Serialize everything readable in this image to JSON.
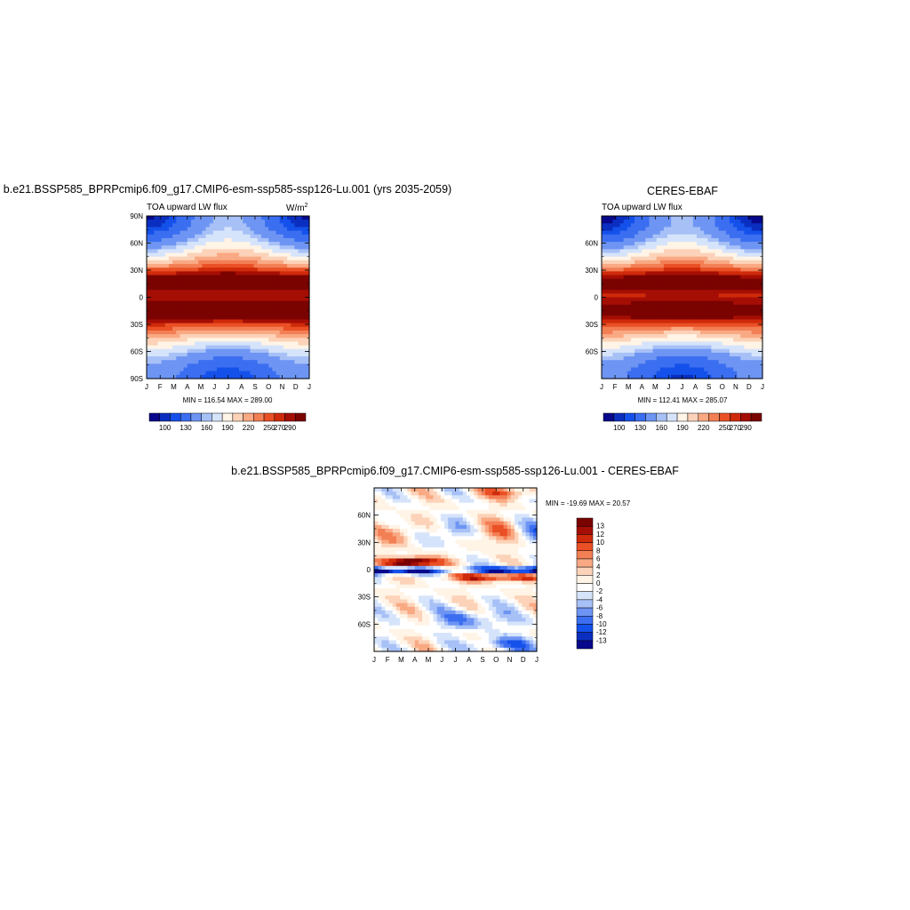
{
  "colors": {
    "lw_palette": [
      "#08088c",
      "#0a2fc0",
      "#1450ea",
      "#3b6ef0",
      "#6e95f3",
      "#a7c1f7",
      "#d6e4fb",
      "#fff4e6",
      "#fcd2b8",
      "#f9a983",
      "#f37f55",
      "#ea5025",
      "#cf2a0a",
      "#a50e04",
      "#7a0300"
    ],
    "diff_palette": [
      "#08088c",
      "#0a2fc0",
      "#1450ea",
      "#3b6ef0",
      "#6e95f3",
      "#a7c1f7",
      "#d6e4fb",
      "#ffffff",
      "#fff4e6",
      "#fcd2b8",
      "#f9a983",
      "#f37f55",
      "#ea5025",
      "#cf2a0a",
      "#a50e04",
      "#7a0300"
    ]
  },
  "chart_data": [
    {
      "type": "heatmap",
      "title": "b.e21.BSSP585_BPRPcmip6.f09_g17.CMIP6-esm-ssp585-ssp126-Lu.001 (yrs 2035-2059)",
      "left_label": "TOA upward LW flux",
      "units_base": "W/m",
      "units_exp": "2",
      "xticks": [
        "J",
        "F",
        "M",
        "A",
        "M",
        "J",
        "J",
        "A",
        "S",
        "O",
        "N",
        "D",
        "J"
      ],
      "yticks": [
        "90N",
        "60N",
        "30N",
        "0",
        "30S",
        "60S",
        "90S"
      ],
      "stats": "MIN = 116.54 MAX = 289.00",
      "min": 116.54,
      "max": 289.0,
      "colorbar_labels": [
        "100",
        "130",
        "160",
        "190",
        "220",
        "250",
        "270",
        "290"
      ],
      "levels": [
        90,
        100,
        110,
        130,
        150,
        160,
        175,
        190,
        205,
        220,
        235,
        250,
        260,
        270,
        280,
        290
      ]
    },
    {
      "type": "heatmap",
      "title": "CERES-EBAF",
      "left_label": "TOA upward LW flux",
      "xticks": [
        "J",
        "F",
        "M",
        "A",
        "M",
        "J",
        "J",
        "A",
        "S",
        "O",
        "N",
        "D",
        "J"
      ],
      "yticks": [
        "60N",
        "30N",
        "0",
        "30S",
        "60S"
      ],
      "stats": "MIN = 112.41 MAX = 285.07",
      "min": 112.41,
      "max": 285.07,
      "colorbar_labels": [
        "100",
        "130",
        "160",
        "190",
        "220",
        "250",
        "270",
        "290"
      ],
      "levels": [
        90,
        100,
        110,
        130,
        150,
        160,
        175,
        190,
        205,
        220,
        235,
        250,
        260,
        270,
        280,
        290
      ]
    },
    {
      "type": "heatmap",
      "title": "b.e21.BSSP585_BPRPcmip6.f09_g17.CMIP6-esm-ssp585-ssp126-Lu.001 - CERES-EBAF",
      "xticks": [
        "J",
        "F",
        "M",
        "A",
        "M",
        "J",
        "J",
        "A",
        "S",
        "O",
        "N",
        "D",
        "J"
      ],
      "yticks": [
        "60N",
        "30N",
        "0",
        "30S",
        "60S"
      ],
      "stats": "MIN = -19.69 MAX =  20.57",
      "min": -19.69,
      "max": 20.57,
      "colorbar_labels": [
        "13",
        "12",
        "10",
        "8",
        "6",
        "4",
        "2",
        "0",
        "-2",
        "-4",
        "-6",
        "-8",
        "-10",
        "-12",
        "-13"
      ],
      "levels": [
        -13,
        -12,
        -10,
        -8,
        -6,
        -4,
        -2,
        0,
        2,
        4,
        6,
        8,
        10,
        12,
        13
      ]
    }
  ]
}
